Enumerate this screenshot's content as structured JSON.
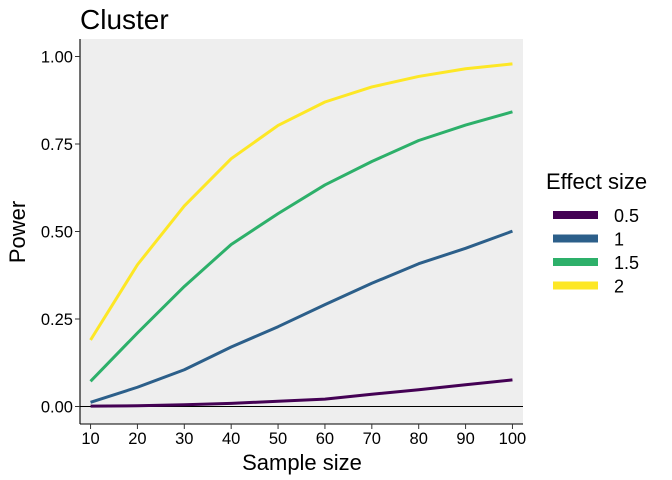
{
  "chart_data": {
    "type": "line",
    "title": "Cluster",
    "xlabel": "Sample size",
    "ylabel": "Power",
    "x": [
      10,
      20,
      30,
      40,
      50,
      60,
      70,
      80,
      90,
      100
    ],
    "xlim": [
      7.75,
      102.25
    ],
    "ylim": [
      -0.05,
      1.05
    ],
    "xticks": [
      "10",
      "20",
      "30",
      "40",
      "50",
      "60",
      "70",
      "80",
      "90",
      "100"
    ],
    "yticks": [
      "0.00",
      "0.25",
      "0.50",
      "0.75",
      "1.00"
    ],
    "grid": false,
    "panel_background": "#EEEEEE",
    "legend": {
      "title": "Effect size",
      "position": "right"
    },
    "series": [
      {
        "name": "0.5",
        "color": "#440154",
        "values": [
          0.001,
          0.002,
          0.005,
          0.009,
          0.015,
          0.021,
          0.035,
          0.048,
          0.062,
          0.076
        ]
      },
      {
        "name": "1",
        "color": "#2C5F8A",
        "values": [
          0.012,
          0.055,
          0.105,
          0.17,
          0.228,
          0.291,
          0.352,
          0.408,
          0.452,
          0.501
        ]
      },
      {
        "name": "1.5",
        "color": "#2DB06A",
        "values": [
          0.072,
          0.21,
          0.343,
          0.463,
          0.551,
          0.633,
          0.7,
          0.76,
          0.804,
          0.842
        ]
      },
      {
        "name": "2",
        "color": "#FDE725",
        "values": [
          0.19,
          0.405,
          0.573,
          0.708,
          0.803,
          0.87,
          0.913,
          0.943,
          0.965,
          0.979
        ]
      }
    ]
  }
}
